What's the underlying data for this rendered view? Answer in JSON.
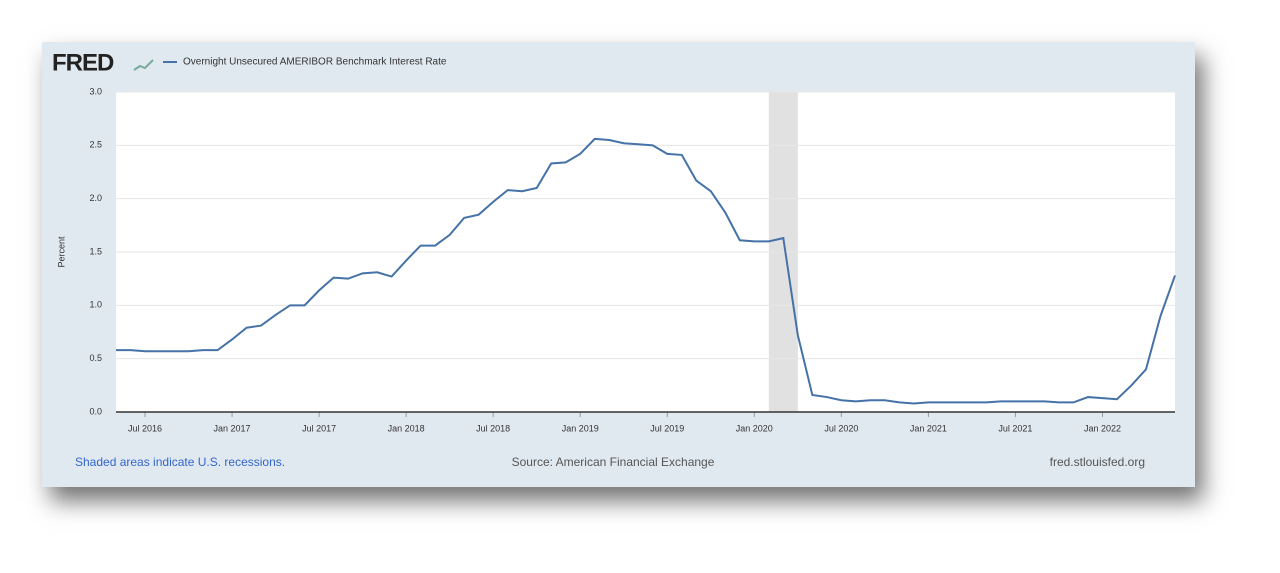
{
  "chart_data": {
    "type": "line",
    "logo": "FRED",
    "y_label": "Percent",
    "note": "Shaded areas indicate U.S. recessions.",
    "source": "Source: American Financial Exchange",
    "site": "fred.stlouisfed.org",
    "x": [
      "2016-05",
      "2016-06",
      "2016-07",
      "2016-08",
      "2016-09",
      "2016-10",
      "2016-11",
      "2016-12",
      "2017-01",
      "2017-02",
      "2017-03",
      "2017-04",
      "2017-05",
      "2017-06",
      "2017-07",
      "2017-08",
      "2017-09",
      "2017-10",
      "2017-11",
      "2017-12",
      "2018-01",
      "2018-02",
      "2018-03",
      "2018-04",
      "2018-05",
      "2018-06",
      "2018-07",
      "2018-08",
      "2018-09",
      "2018-10",
      "2018-11",
      "2018-12",
      "2019-01",
      "2019-02",
      "2019-03",
      "2019-04",
      "2019-05",
      "2019-06",
      "2019-07",
      "2019-08",
      "2019-09",
      "2019-10",
      "2019-11",
      "2019-12",
      "2020-01",
      "2020-02",
      "2020-03",
      "2020-04",
      "2020-05",
      "2020-06",
      "2020-07",
      "2020-08",
      "2020-09",
      "2020-10",
      "2020-11",
      "2020-12",
      "2021-01",
      "2021-02",
      "2021-03",
      "2021-04",
      "2021-05",
      "2021-06",
      "2021-07",
      "2021-08",
      "2021-09",
      "2021-10",
      "2021-11",
      "2021-12",
      "2022-01",
      "2022-02",
      "2022-03",
      "2022-04",
      "2022-05",
      "2022-06"
    ],
    "series": [
      {
        "name": "Overnight Unsecured AMERIBOR Benchmark Interest Rate",
        "color": "#4572a7",
        "values": [
          0.58,
          0.58,
          0.57,
          0.57,
          0.57,
          0.57,
          0.58,
          0.58,
          0.68,
          0.79,
          0.81,
          0.91,
          1.0,
          1.0,
          1.14,
          1.26,
          1.25,
          1.3,
          1.31,
          1.27,
          1.42,
          1.56,
          1.56,
          1.66,
          1.82,
          1.85,
          1.97,
          2.08,
          2.07,
          2.1,
          2.33,
          2.34,
          2.42,
          2.56,
          2.55,
          2.52,
          2.51,
          2.5,
          2.42,
          2.41,
          2.17,
          2.07,
          1.87,
          1.61,
          1.6,
          1.6,
          1.63,
          0.72,
          0.16,
          0.14,
          0.11,
          0.1,
          0.11,
          0.11,
          0.09,
          0.08,
          0.09,
          0.09,
          0.09,
          0.09,
          0.09,
          0.1,
          0.1,
          0.1,
          0.1,
          0.09,
          0.09,
          0.14,
          0.13,
          0.12,
          0.25,
          0.4,
          0.9,
          1.28
        ]
      }
    ],
    "recessions": [
      {
        "start": "2020-02",
        "end": "2020-04"
      }
    ],
    "recession_color": "#e1e1e1",
    "xlim": [
      "2016-05",
      "2022-06"
    ],
    "xticks": [
      {
        "value": "2016-07",
        "label": "Jul 2016"
      },
      {
        "value": "2017-01",
        "label": "Jan 2017"
      },
      {
        "value": "2017-07",
        "label": "Jul 2017"
      },
      {
        "value": "2018-01",
        "label": "Jan 2018"
      },
      {
        "value": "2018-07",
        "label": "Jul 2018"
      },
      {
        "value": "2019-01",
        "label": "Jan 2019"
      },
      {
        "value": "2019-07",
        "label": "Jul 2019"
      },
      {
        "value": "2020-01",
        "label": "Jan 2020"
      },
      {
        "value": "2020-07",
        "label": "Jul 2020"
      },
      {
        "value": "2021-01",
        "label": "Jan 2021"
      },
      {
        "value": "2021-07",
        "label": "Jul 2021"
      },
      {
        "value": "2022-01",
        "label": "Jan 2022"
      }
    ],
    "ylim": [
      0,
      3
    ],
    "yticks": [
      {
        "value": 0,
        "label": "0.0"
      },
      0.5,
      {
        "value": 1,
        "label": "1.0"
      },
      1.5,
      {
        "value": 2,
        "label": "2.0"
      },
      2.5,
      {
        "value": 3,
        "label": "3.0"
      }
    ],
    "grid": true
  }
}
